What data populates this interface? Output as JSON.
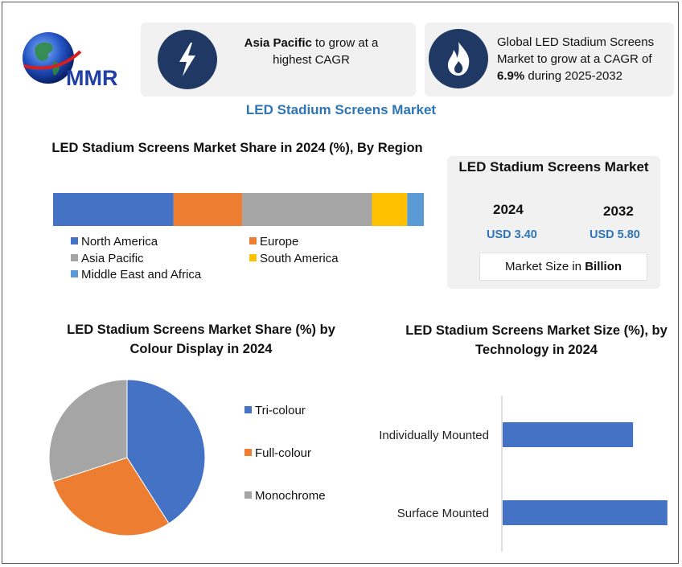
{
  "logo": {
    "text": "MMR"
  },
  "cards": [
    {
      "icon": "lightning-bolt-icon",
      "bold": "Asia Pacific",
      "rest": " to grow at a highest CAGR"
    },
    {
      "icon": "flame-icon",
      "pre": "Global LED Stadium Screens Market to grow at a CAGR of ",
      "bold": "6.9%",
      "post": " during 2025-2032"
    }
  ],
  "main_title": "LED Stadium Screens Market",
  "colors": {
    "blue": "#4472c4",
    "orange": "#ed7d31",
    "gray": "#a5a5a5",
    "yellow": "#ffc000",
    "light_blue": "#5b9bd5",
    "accent": "#2e75b6",
    "icon_bg": "#1f3864"
  },
  "market_box": {
    "title": "LED Stadium Screens Market",
    "years": [
      "2024",
      "2032"
    ],
    "values": [
      "USD 3.40",
      "USD 5.80"
    ],
    "unit_pre": "Market Size in ",
    "unit_bold": "Billion"
  },
  "chart_data": [
    {
      "type": "bar",
      "orientation": "horizontal-stacked",
      "title": "LED Stadium Screens Market Share in 2024 (%), By Region",
      "series": [
        {
          "name": "North America",
          "values": [
            32.5
          ]
        },
        {
          "name": "Europe",
          "values": [
            18.5
          ]
        },
        {
          "name": "Asia Pacific",
          "values": [
            35.0
          ]
        },
        {
          "name": "South America",
          "values": [
            9.5
          ]
        },
        {
          "name": "Middle East and Africa",
          "values": [
            4.5
          ]
        }
      ],
      "legend": "bottom"
    },
    {
      "type": "pie",
      "title": "LED Stadium Screens Market  Share (%) by Colour Display in 2024",
      "labels": [
        "Tri-colour",
        "Full-colour",
        "Monochrome"
      ],
      "values": [
        41,
        29,
        30
      ],
      "legend": "right"
    },
    {
      "type": "bar",
      "orientation": "horizontal",
      "title": "LED Stadium Screens Market Size (%), by Technology in 2024",
      "categories": [
        "Individually Mounted",
        "Surface Mounted"
      ],
      "values": [
        38,
        48
      ],
      "xlim": [
        0,
        60
      ]
    }
  ]
}
